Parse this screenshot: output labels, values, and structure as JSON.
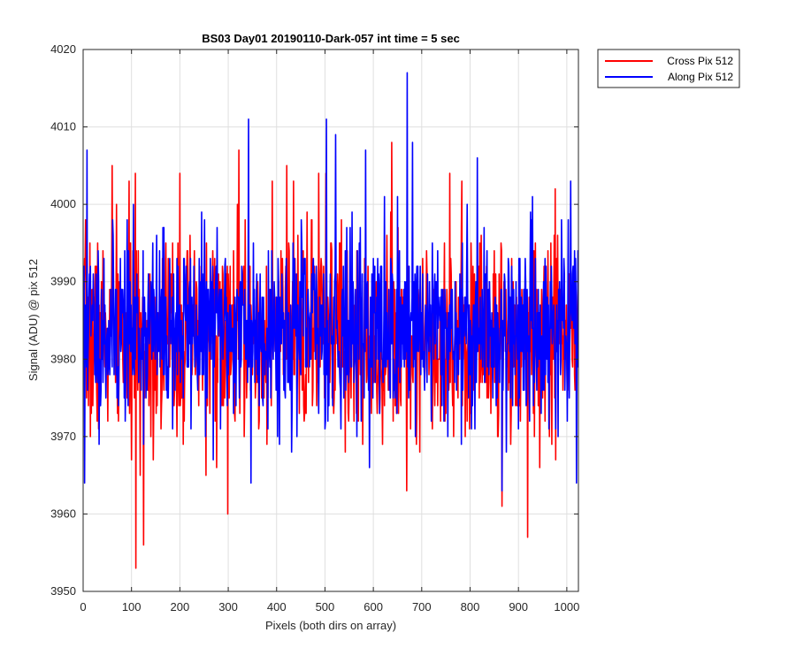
{
  "chart_data": {
    "type": "line",
    "title": "BS03 Day01 20190110-Dark-057 int time = 5 sec",
    "xlabel": "Pixels (both dirs on array)",
    "ylabel": "Signal (ADU) @ pix 512",
    "xlim": [
      0,
      1024
    ],
    "ylim": [
      3950,
      4020
    ],
    "xticks": [
      0,
      100,
      200,
      300,
      400,
      500,
      600,
      700,
      800,
      900,
      1000
    ],
    "yticks": [
      3950,
      3960,
      3970,
      3980,
      3990,
      4000,
      4010,
      4020
    ],
    "grid": true,
    "legend_location": "outside-top-right",
    "series": [
      {
        "name": "Cross Pix 512",
        "color": "#ff0000",
        "x_start": 1,
        "x_end": 1024,
        "mean": 3983,
        "std": 6.5,
        "seed": 7,
        "peaks": [
          {
            "x": 60,
            "y": 4005
          },
          {
            "x": 108,
            "y": 4004
          },
          {
            "x": 108.6,
            "y": 3953
          },
          {
            "x": 125,
            "y": 3956
          },
          {
            "x": 200,
            "y": 4004
          },
          {
            "x": 299,
            "y": 3960
          },
          {
            "x": 322,
            "y": 4007
          },
          {
            "x": 421,
            "y": 4005
          },
          {
            "x": 487,
            "y": 4004
          },
          {
            "x": 502,
            "y": 4004
          },
          {
            "x": 542,
            "y": 3968
          },
          {
            "x": 638,
            "y": 4008
          },
          {
            "x": 758,
            "y": 4004
          },
          {
            "x": 866,
            "y": 3961
          },
          {
            "x": 919,
            "y": 3957
          },
          {
            "x": 976,
            "y": 4002
          }
        ]
      },
      {
        "name": "Along Pix 512",
        "color": "#0000ff",
        "x_start": 1,
        "x_end": 1024,
        "mean": 3984,
        "std": 6.0,
        "seed": 11,
        "peaks": [
          {
            "x": 8,
            "y": 4007
          },
          {
            "x": 3,
            "y": 3964
          },
          {
            "x": 342,
            "y": 4011
          },
          {
            "x": 347,
            "y": 3964
          },
          {
            "x": 503,
            "y": 4011
          },
          {
            "x": 522,
            "y": 4009
          },
          {
            "x": 584,
            "y": 4007
          },
          {
            "x": 670,
            "y": 4017
          },
          {
            "x": 681,
            "y": 4008
          },
          {
            "x": 815,
            "y": 4006
          },
          {
            "x": 866,
            "y": 3963
          },
          {
            "x": 1020,
            "y": 3964
          }
        ]
      }
    ]
  }
}
